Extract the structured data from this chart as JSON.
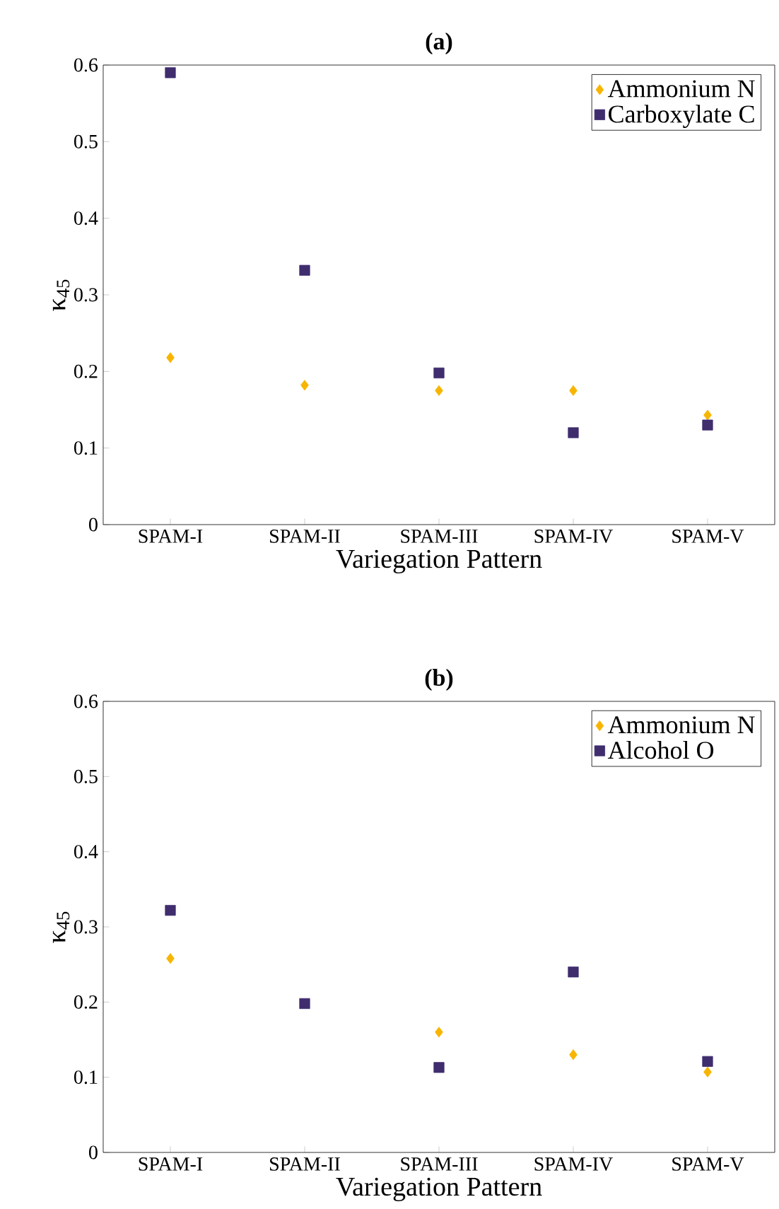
{
  "chart_data": [
    {
      "type": "scatter",
      "title": "(a)",
      "xlabel": "Variegation Pattern",
      "ylabel": "κ$_{45}$",
      "categories": [
        "SPAM-I",
        "SPAM-II",
        "SPAM-III",
        "SPAM-IV",
        "SPAM-V"
      ],
      "series": [
        {
          "name": "Ammonium N",
          "color": "#f7b500",
          "marker": "diamond",
          "values": [
            0.218,
            0.182,
            0.175,
            0.175,
            0.143
          ]
        },
        {
          "name": "Carboxylate C",
          "color": "#3f2d6e",
          "marker": "square",
          "values": [
            0.59,
            0.332,
            0.198,
            0.12,
            0.13
          ]
        }
      ],
      "ylim": [
        0,
        0.6
      ],
      "yticks": [
        0,
        0.1,
        0.2,
        0.3,
        0.4,
        0.5,
        0.6
      ],
      "legend": "top right",
      "grid": false
    },
    {
      "type": "scatter",
      "title": "(b)",
      "xlabel": "Variegation Pattern",
      "ylabel": "κ$_{45}$",
      "categories": [
        "SPAM-I",
        "SPAM-II",
        "SPAM-III",
        "SPAM-IV",
        "SPAM-V"
      ],
      "series": [
        {
          "name": "Ammonium N",
          "color": "#f7b500",
          "marker": "diamond",
          "values": [
            0.258,
            null,
            0.16,
            0.13,
            0.107
          ]
        },
        {
          "name": "Alcohol O",
          "color": "#3f2d6e",
          "marker": "square",
          "values": [
            0.322,
            0.198,
            0.113,
            0.24,
            0.121
          ]
        }
      ],
      "ylim": [
        0,
        0.6
      ],
      "yticks": [
        0,
        0.1,
        0.2,
        0.3,
        0.4,
        0.5,
        0.6
      ],
      "legend": "top right",
      "grid": false
    }
  ]
}
